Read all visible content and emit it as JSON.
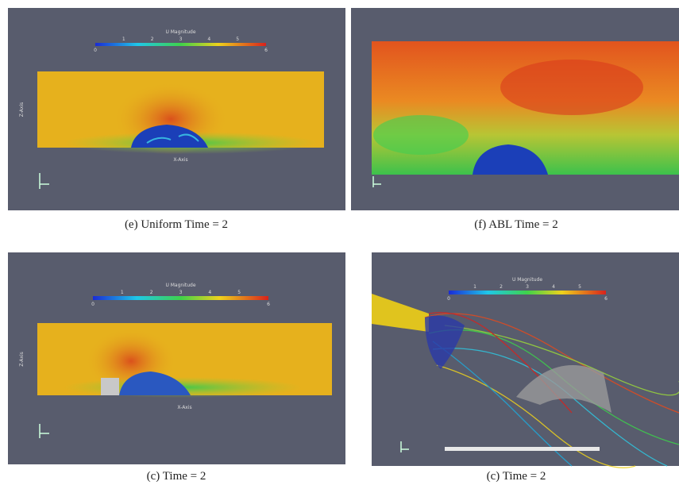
{
  "figure": {
    "panels": [
      {
        "caption": "(e) Uniform Time = 2",
        "colorbar": {
          "title": "U Magnitude",
          "ticks": [
            "0",
            "1",
            "2",
            "3",
            "4",
            "5",
            "6"
          ]
        },
        "axes": {
          "x_label": "X-Axis",
          "y_label": "Z-Axis"
        }
      },
      {
        "caption": "(f) ABL Time = 2"
      },
      {
        "caption": "(c) Time = 2",
        "colorbar": {
          "title": "U Magnitude",
          "ticks": [
            "0",
            "1",
            "2",
            "3",
            "4",
            "5",
            "6"
          ]
        },
        "axes": {
          "x_label": "X-Axis",
          "y_label": "Z-Axis"
        }
      },
      {
        "caption": "(c) Time = 2",
        "colorbar": {
          "title": "U Magnitude",
          "ticks": [
            "0",
            "1",
            "2",
            "3",
            "4",
            "5",
            "6"
          ]
        }
      }
    ]
  }
}
